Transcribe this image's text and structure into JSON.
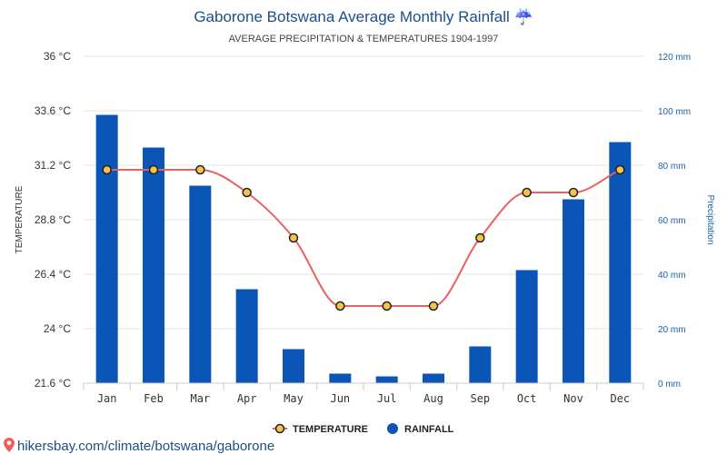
{
  "chart_data": {
    "type": "bar+line",
    "title": "Gaborone Botswana Average Monthly Rainfall ☔",
    "subtitle": "AVERAGE PRECIPITATION & TEMPERATURES 1904-1997",
    "categories": [
      "Jan",
      "Feb",
      "Mar",
      "Apr",
      "May",
      "Jun",
      "Jul",
      "Aug",
      "Sep",
      "Oct",
      "Nov",
      "Dec"
    ],
    "series": [
      {
        "name": "TEMPERATURE",
        "kind": "line",
        "axis": "left",
        "unit": "°C",
        "color": "#e8615f",
        "marker_fill": "#f5c24d",
        "values": [
          31.0,
          31.0,
          31.0,
          30.0,
          28.0,
          25.0,
          25.0,
          25.0,
          28.0,
          30.0,
          30.0,
          31.0
        ]
      },
      {
        "name": "RAINFALL",
        "kind": "bar",
        "axis": "right",
        "unit": "mm",
        "color": "#0a55b5",
        "values": [
          98.5,
          86.5,
          72.5,
          34.5,
          12.5,
          3.5,
          2.5,
          3.5,
          13.5,
          41.5,
          67.5,
          88.5
        ]
      }
    ],
    "y_left": {
      "label": "TEMPERATURE",
      "min": 21.6,
      "max": 36,
      "ticks": [
        "21.6 °C",
        "24 °C",
        "26.4 °C",
        "28.8 °C",
        "31.2 °C",
        "33.6 °C",
        "36 °C"
      ]
    },
    "y_right": {
      "label": "Precipitation",
      "min": 0,
      "max": 120,
      "ticks": [
        "0 mm",
        "20 mm",
        "40 mm",
        "60 mm",
        "80 mm",
        "100 mm",
        "120 mm"
      ]
    },
    "grid": true,
    "legend_position": "bottom-center"
  },
  "footer": {
    "source": "hikersbay.com/climate/botswana/gaborone",
    "pin_icon": "map-pin-icon",
    "pin_color": "#e8615f"
  }
}
